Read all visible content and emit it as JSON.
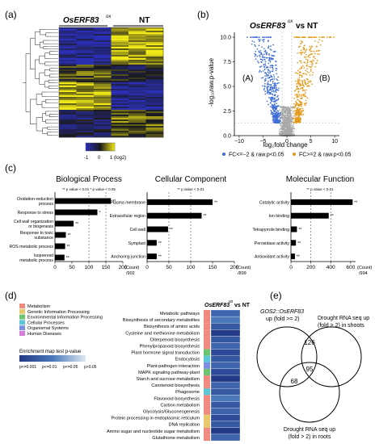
{
  "panel_a": {
    "label": "(a)",
    "group1": "OsERF83",
    "group1_sup": "ox",
    "group2": "NT",
    "colorbar_ticks": [
      "-1",
      "0",
      "1 (log2)"
    ]
  },
  "panel_b": {
    "label": "(b)",
    "title": "OsERF83",
    "title_sup": "ox",
    "title_vs": "vs NT",
    "region_left": "(A)",
    "region_right": "(B)",
    "legend_down": "FC<=−2 & raw.p<0.05",
    "legend_up": "FC>=2 & raw.p<0.05",
    "colors": {
      "down": "#3f6fd6",
      "up": "#e39a1c",
      "ns": "#a8a8a8"
    }
  },
  "panel_c": {
    "label": "(c)"
  },
  "panel_d": {
    "label": "(d)",
    "header": "OsERF83",
    "header_sup": "ox",
    "header_vs": "vs NT",
    "categories": [
      {
        "name": "Metabolism",
        "color": "#f08a7e"
      },
      {
        "name": "Genetic Information Processing",
        "color": "#e8c86a"
      },
      {
        "name": "Environmental Information Processing",
        "color": "#6cc56e"
      },
      {
        "name": "Cellular Processes",
        "color": "#5bc7d6"
      },
      {
        "name": "Organismal Systems",
        "color": "#7b8ee0"
      },
      {
        "name": "Human Diseases",
        "color": "#d77bd8"
      }
    ],
    "pvalue_title": "Enrichment map test p-value",
    "pvalue_labels": [
      "p<=0.001",
      "p<=0.01",
      "p<=0.05",
      "p>0.05"
    ],
    "pathways": [
      {
        "name": "Metabolic pathways",
        "cat": 0
      },
      {
        "name": "Biosynthesis of secondary metabolites",
        "cat": 0
      },
      {
        "name": "Biosynthesis of amino acids",
        "cat": 0
      },
      {
        "name": "Cysteine and methionine metabolism",
        "cat": 0
      },
      {
        "name": "Diterpenoid biosynthesis",
        "cat": 0
      },
      {
        "name": "Phenylpropanoid biosynthesis",
        "cat": 0
      },
      {
        "name": "Plant hormone signal transduction",
        "cat": 2
      },
      {
        "name": "Endocytosis",
        "cat": 3
      },
      {
        "name": "Plant-pathogen interaction",
        "cat": 4
      },
      {
        "name": "MAPK signaling pathway-plant",
        "cat": 2
      },
      {
        "name": "Starch and sucrose metabolism",
        "cat": 0
      },
      {
        "name": "Carotenoid biosynthesis",
        "cat": 0
      },
      {
        "name": "Phagosome",
        "cat": 3
      },
      {
        "name": "Flavonoid biosynthesis",
        "cat": 0
      },
      {
        "name": "Carbon metabolism",
        "cat": 0
      },
      {
        "name": "Glycolysis/Gluconeogenesis",
        "cat": 0
      },
      {
        "name": "Protein processing in endoplasmic reticulum",
        "cat": 1
      },
      {
        "name": "DNA replication",
        "cat": 1
      },
      {
        "name": "Amino sugar and nucleotide sugar metabolism",
        "cat": 0
      },
      {
        "name": "Glutathione metabolism",
        "cat": 0
      }
    ]
  },
  "panel_e": {
    "label": "(e)",
    "set1_line1": "GOS2::OsERF83",
    "set1_line2": "up (fold >= 2)",
    "set2_line1": "Drought RNA seq up",
    "set2_line2": "(fold > 2) in shoots",
    "set3_line1": "Drought RNA seq up",
    "set3_line2": "(fold > 2) in roots",
    "n12": "126",
    "n123": "95",
    "n13": "68"
  },
  "chart_data": [
    {
      "type": "heatmap",
      "panel": "a",
      "columns_group1": 3,
      "columns_group2": 3,
      "scale_range": [
        -1,
        1
      ],
      "colors": [
        "#2b2fb8",
        "#1a1a1a",
        "#f2ea18"
      ]
    },
    {
      "type": "scatter",
      "panel": "b",
      "xlabel": "log₂fold change",
      "ylabel": "-log₁₀raw.p-value",
      "xlim": [
        -11,
        11
      ],
      "ylim": [
        0,
        10.5
      ],
      "xticks": [
        -10,
        -5,
        0,
        5,
        10
      ],
      "yticks": [
        0,
        2.5,
        5,
        7.5,
        10
      ],
      "xtick_labels": [
        "−10",
        "−5",
        "0",
        "5",
        "10"
      ],
      "ytick_labels": [
        "0.0",
        "2.5",
        "5.0",
        "7.5",
        "10.0"
      ]
    },
    {
      "type": "bar",
      "panel": "c",
      "orientation": "horizontal",
      "title": "Biological Process",
      "significance_note": "** p value < 0.01   * p value < 0.05",
      "categories": [
        "Oxidation-reduction process",
        "Response to stress",
        "Cell wall organization or biogenesis",
        "Response to toxic substance",
        "ROS metabolic process",
        "Isoprenoid metabolic process"
      ],
      "values": [
        165,
        125,
        55,
        32,
        30,
        28
      ],
      "stars": [
        "**",
        "*",
        "**",
        "**",
        "**",
        "**"
      ],
      "xticks": [
        0,
        50,
        100,
        150,
        200
      ],
      "xlim": [
        0,
        200
      ],
      "xlabel_line1": "(Count)",
      "xlabel_line2": "/902",
      "dashed_at": [
        100,
        150
      ]
    },
    {
      "type": "bar",
      "panel": "c",
      "orientation": "horizontal",
      "title": "Cellular Component",
      "significance_note": "** p value < 0.01",
      "categories": [
        "Plasma membrane",
        "Extracellular region",
        "Cell wall",
        "Symplast",
        "Anchoring junction"
      ],
      "values": [
        150,
        125,
        48,
        22,
        22
      ],
      "stars": [
        "**",
        "**",
        "**",
        "**",
        "**"
      ],
      "xticks": [
        0,
        50,
        100,
        150,
        200
      ],
      "xlim": [
        0,
        200
      ],
      "xlabel_line1": "(Count)",
      "xlabel_line2": "/899",
      "dashed_at": [
        50,
        100
      ]
    },
    {
      "type": "bar",
      "panel": "c",
      "orientation": "horizontal",
      "title": "Molecular Function",
      "significance_note": "** p value < 0.01",
      "categories": [
        "Catalytic activity",
        "Ion binding",
        "Tetrapyrrole binding",
        "Peroxidase activity",
        "Antioxidant activity"
      ],
      "values": [
        620,
        380,
        60,
        50,
        40
      ],
      "stars": [
        "**",
        "**",
        "**",
        "**",
        "**"
      ],
      "xticks": [
        0,
        200,
        400,
        600
      ],
      "xlim": [
        0,
        650
      ],
      "xlabel_line1": "(Count)",
      "xlabel_line2": "/994",
      "dashed_at": [
        200,
        400
      ]
    }
  ]
}
